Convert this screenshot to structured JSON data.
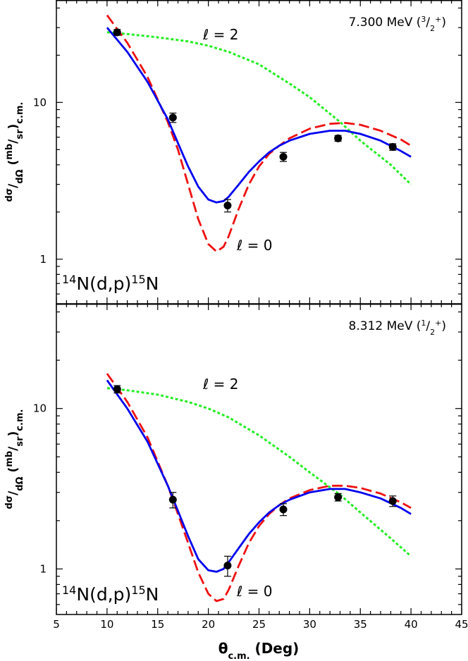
{
  "chart_data": [
    {
      "type": "scatter",
      "panel": "upper",
      "state_label": "7.300 MeV",
      "jpi": {
        "num": "3",
        "den": "2",
        "parity": "+"
      },
      "reaction": {
        "target_mass": "14",
        "target": "N",
        "reaction": "(d,p)",
        "product_mass": "15",
        "product": "N"
      },
      "ylabel": {
        "main": "dσ",
        "sub": "dΩ",
        "unit_num": "mb",
        "unit_den": "sr",
        "frame": "c.m."
      },
      "xlim": [
        5,
        45
      ],
      "ylim": [
        0.52,
        45
      ],
      "yscale": "log",
      "y_ticks": [
        1,
        10
      ],
      "y_tick_labels": [
        "1",
        "10"
      ],
      "data_points": {
        "x": [
          11.0,
          16.5,
          21.9,
          27.4,
          32.8,
          38.2
        ],
        "y": [
          28.0,
          8.0,
          2.2,
          4.5,
          5.9,
          5.2
        ],
        "yerr": [
          1.2,
          0.55,
          0.2,
          0.3,
          0.25,
          0.25
        ]
      },
      "series": [
        {
          "name": "ℓ = 2",
          "style": "dotted",
          "color": "#22ee22",
          "x": [
            10,
            12,
            15,
            18,
            20,
            22,
            25,
            28,
            30,
            33,
            35,
            38,
            40
          ],
          "y": [
            28,
            27.3,
            26,
            24.5,
            23,
            21,
            17.5,
            13.2,
            10.8,
            7.5,
            5.7,
            4.0,
            3.0
          ]
        },
        {
          "name": "ℓ = 0",
          "style": "dashed",
          "color": "#ee1111",
          "x": [
            10,
            12,
            14,
            16,
            17,
            18,
            19,
            20,
            20.8,
            21.5,
            22,
            23,
            24,
            25,
            26,
            27,
            28,
            30,
            32,
            33.5,
            35,
            37,
            39,
            40
          ],
          "y": [
            36,
            24,
            14.5,
            7.5,
            5.0,
            3.0,
            1.8,
            1.25,
            1.12,
            1.2,
            1.4,
            2.1,
            3.0,
            3.9,
            4.7,
            5.3,
            5.9,
            6.8,
            7.3,
            7.4,
            7.2,
            6.6,
            5.8,
            5.3
          ]
        },
        {
          "name": "",
          "style": "solid",
          "color": "#0000ee",
          "x": [
            10,
            12,
            14,
            16,
            17,
            18,
            19,
            20,
            20.8,
            21.5,
            22,
            23,
            24,
            25,
            26,
            27,
            28,
            30,
            32,
            33.5,
            35,
            37,
            39,
            40
          ],
          "y": [
            30,
            21,
            13.5,
            7.8,
            5.5,
            3.9,
            2.9,
            2.4,
            2.3,
            2.35,
            2.5,
            3.0,
            3.6,
            4.2,
            4.8,
            5.3,
            5.7,
            6.3,
            6.6,
            6.6,
            6.3,
            5.7,
            4.9,
            4.5
          ]
        }
      ],
      "annotations": {
        "ell2": "ℓ = 2",
        "ell0": "ℓ = 0"
      }
    },
    {
      "type": "scatter",
      "panel": "lower",
      "state_label": "8.312 MeV",
      "jpi": {
        "num": "1",
        "den": "2",
        "parity": "+"
      },
      "reaction": {
        "target_mass": "14",
        "target": "N",
        "reaction": "(d,p)",
        "product_mass": "15",
        "product": "N"
      },
      "ylabel": {
        "main": "dσ",
        "sub": "dΩ",
        "unit_num": "mb",
        "unit_den": "sr",
        "frame": "c.m."
      },
      "xlim": [
        5,
        45
      ],
      "ylim": [
        0.52,
        45
      ],
      "yscale": "log",
      "y_ticks": [
        1,
        10
      ],
      "y_tick_labels": [
        "1",
        "10"
      ],
      "data_points": {
        "x": [
          11.0,
          16.5,
          21.9,
          27.4,
          32.8,
          38.2
        ],
        "y": [
          13.2,
          2.7,
          1.05,
          2.35,
          2.8,
          2.65
        ],
        "yerr": [
          0.7,
          0.3,
          0.15,
          0.2,
          0.15,
          0.2
        ]
      },
      "series": [
        {
          "name": "ℓ = 2",
          "style": "dotted",
          "color": "#22ee22",
          "x": [
            10,
            12,
            15,
            18,
            20,
            22,
            25,
            28,
            30,
            33,
            35,
            38,
            40
          ],
          "y": [
            13.4,
            13.0,
            12.2,
            11.0,
            10.0,
            8.8,
            6.8,
            5.0,
            4.0,
            2.9,
            2.25,
            1.55,
            1.2
          ]
        },
        {
          "name": "ℓ = 0",
          "style": "dashed",
          "color": "#ee1111",
          "x": [
            10,
            12,
            14,
            16,
            17,
            18,
            19,
            20,
            20.8,
            21.5,
            22,
            23,
            24,
            25,
            26,
            27,
            28,
            30,
            32,
            33.5,
            35,
            37,
            39,
            40
          ],
          "y": [
            16.5,
            11.0,
            6.6,
            3.3,
            2.2,
            1.45,
            0.95,
            0.7,
            0.63,
            0.65,
            0.74,
            1.05,
            1.45,
            1.85,
            2.2,
            2.5,
            2.75,
            3.1,
            3.3,
            3.3,
            3.2,
            2.95,
            2.6,
            2.4
          ]
        },
        {
          "name": "",
          "style": "solid",
          "color": "#0000ee",
          "x": [
            10,
            12,
            14,
            16,
            17,
            18,
            19,
            20,
            20.8,
            21.5,
            22,
            23,
            24,
            25,
            26,
            27,
            28,
            30,
            32,
            33.5,
            35,
            37,
            39,
            40
          ],
          "y": [
            15.0,
            10.0,
            6.2,
            3.3,
            2.3,
            1.6,
            1.15,
            0.98,
            0.96,
            1.0,
            1.1,
            1.35,
            1.65,
            1.95,
            2.25,
            2.5,
            2.7,
            3.0,
            3.15,
            3.15,
            3.0,
            2.75,
            2.4,
            2.2
          ]
        }
      ],
      "annotations": {
        "ell2": "ℓ = 2",
        "ell0": "ℓ = 0"
      }
    }
  ],
  "x_axis": {
    "ticks": [
      5,
      10,
      15,
      20,
      25,
      30,
      35,
      40,
      45
    ],
    "tick_labels": [
      "5",
      "10",
      "15",
      "20",
      "25",
      "30",
      "35",
      "40",
      "45"
    ],
    "label_main": "θ",
    "label_sub": "c.m.",
    "label_unit": "(Deg)"
  }
}
